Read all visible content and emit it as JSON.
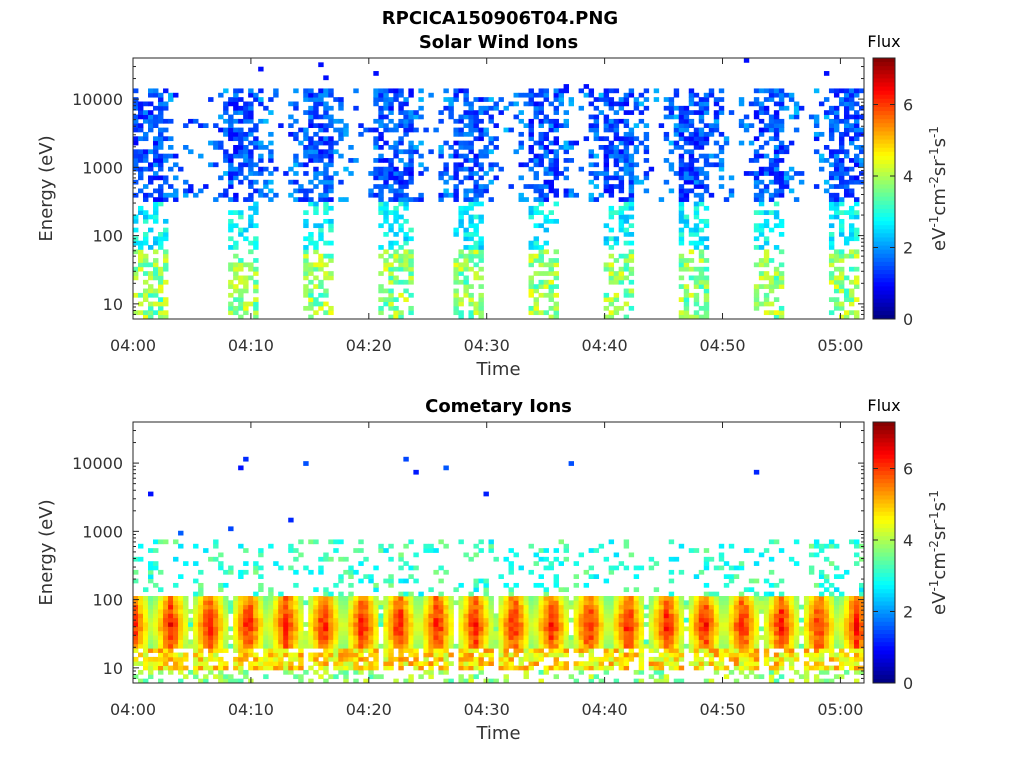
{
  "figure": {
    "filename_title": "RPCICA150906T04.PNG"
  },
  "chart_data": [
    {
      "type": "heatmap",
      "title": "Solar Wind Ions",
      "xlabel": "Time",
      "ylabel": "Energy (eV)",
      "x_ticks": [
        "04:00",
        "04:10",
        "04:20",
        "04:30",
        "04:40",
        "04:50",
        "05:00"
      ],
      "x_range_minutes": [
        0,
        62
      ],
      "y_scale": "log",
      "y_ticks": [
        10,
        100,
        1000,
        10000
      ],
      "ylim": [
        6,
        40000
      ],
      "colorbar": {
        "title": "Flux",
        "label": "eV-1cm-2sr-1s-1",
        "ticks": [
          0,
          2,
          4,
          6
        ],
        "range": [
          0,
          7.3
        ]
      },
      "bursts_center_minutes": [
        1.5,
        9.5,
        15.8,
        22.3,
        28.5,
        35.0,
        41.3,
        47.7,
        53.8,
        60.2
      ],
      "description_values": {
        "high_energy_flux_approx": 1.0,
        "low_energy_flux_approx": 3.5
      }
    },
    {
      "type": "heatmap",
      "title": "Cometary Ions",
      "xlabel": "Time",
      "ylabel": "Energy (eV)",
      "x_ticks": [
        "04:00",
        "04:10",
        "04:20",
        "04:30",
        "04:40",
        "04:50",
        "05:00"
      ],
      "x_range_minutes": [
        0,
        62
      ],
      "y_scale": "log",
      "y_ticks": [
        10,
        100,
        1000,
        10000
      ],
      "ylim": [
        6,
        40000
      ],
      "colorbar": {
        "title": "Flux",
        "label": "eV-1cm-2sr-1s-1",
        "ticks": [
          0,
          2,
          4,
          6
        ],
        "range": [
          0,
          7.3
        ]
      },
      "bursts_center_minutes": [
        0,
        3.2,
        6.5,
        9.8,
        13.0,
        16.2,
        19.5,
        22.6,
        25.8,
        29.0,
        32.3,
        35.5,
        38.7,
        42.0,
        45.3,
        48.5,
        51.7,
        55.0,
        58.2,
        61.4
      ],
      "description_values": {
        "peak_energy_ev": 40,
        "peak_flux_approx": 6.5
      }
    }
  ],
  "colors": {
    "jet": [
      "#00008f",
      "#0000ff",
      "#0080ff",
      "#00ffff",
      "#80ff80",
      "#ffff00",
      "#ff8000",
      "#ff0000",
      "#800000"
    ]
  }
}
